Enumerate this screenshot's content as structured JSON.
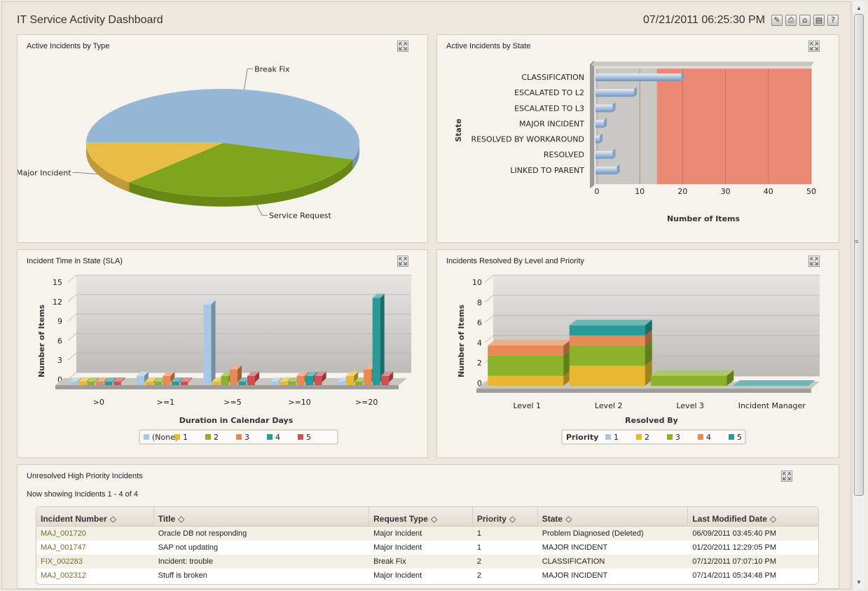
{
  "header": {
    "title": "IT Service Activity Dashboard",
    "datetime": "07/21/2011 06:25:30 PM",
    "tools": [
      "edit-icon",
      "print-icon",
      "home-icon",
      "clipboard-icon",
      "help-icon"
    ],
    "tool_glyphs": [
      "✎",
      "⎙",
      "⌂",
      "▤",
      "?"
    ]
  },
  "panels": {
    "type_title": "Active Incidents by Type",
    "state_title": "Active Incidents by State",
    "sla_title": "Incident Time in State (SLA)",
    "level_title": "Incidents Resolved By Level and Priority",
    "unresolved_title": "Unresolved High Priority Incidents"
  },
  "chart_data": [
    {
      "type": "pie",
      "title": "Active Incidents by Type",
      "labels": [
        "Break Fix",
        "Service Request",
        "Major Incident"
      ],
      "values": [
        55,
        32,
        13
      ],
      "colors": [
        "#95b7d6",
        "#7fa51c",
        "#e9bc45"
      ]
    },
    {
      "type": "bar",
      "orientation": "horizontal",
      "title": "Active Incidents by State",
      "categories": [
        "CLASSIFICATION",
        "ESCALATED TO L2",
        "ESCALATED TO L3",
        "MAJOR INCIDENT",
        "RESOLVED BY WORKAROUND",
        "RESOLVED",
        "LINKED TO PARENT"
      ],
      "values": [
        20,
        9,
        4,
        2,
        1,
        4,
        5
      ],
      "xlabel": "Number of Items",
      "ylabel": "State",
      "xlim": [
        0,
        50
      ],
      "xticks": [
        0,
        10,
        20,
        30,
        40,
        50
      ],
      "bands": [
        {
          "from": 0,
          "to": 14,
          "color": "#c9c8c4"
        },
        {
          "from": 14,
          "to": 50,
          "color": "#ea8a74"
        }
      ]
    },
    {
      "type": "bar",
      "title": "Incident Time in State (SLA)",
      "categories": [
        ">0",
        ">=1",
        ">=5",
        ">=10",
        ">=20"
      ],
      "series": [
        {
          "name": "(None)",
          "color": "#a9c8e6",
          "values": [
            0,
            1,
            12,
            0,
            0
          ]
        },
        {
          "name": "1",
          "color": "#e8b92e",
          "values": [
            0,
            0,
            0,
            0,
            1
          ]
        },
        {
          "name": "2",
          "color": "#8cb22a",
          "values": [
            0,
            0,
            1,
            0,
            0
          ]
        },
        {
          "name": "3",
          "color": "#e88a55",
          "values": [
            0,
            1,
            2,
            1,
            2
          ]
        },
        {
          "name": "4",
          "color": "#2a9a98",
          "values": [
            0,
            0,
            0,
            1,
            13
          ]
        },
        {
          "name": "5",
          "color": "#d34f55",
          "values": [
            0,
            0,
            1,
            1,
            1
          ]
        }
      ],
      "xlabel": "Duration in Calendar Days",
      "ylabel": "Number of Items",
      "ylim": [
        0,
        15
      ],
      "yticks": [
        0,
        3,
        6,
        9,
        12,
        15
      ]
    },
    {
      "type": "bar",
      "stacked": true,
      "title": "Incidents Resolved By Level and Priority",
      "categories": [
        "Level 1",
        "Level 2",
        "Level 3",
        "Incident Manager"
      ],
      "series": [
        {
          "name": "1",
          "color": "#a9c8e6",
          "values": [
            0,
            0,
            0,
            0
          ]
        },
        {
          "name": "2",
          "color": "#e8b92e",
          "values": [
            1,
            2,
            0,
            0
          ]
        },
        {
          "name": "3",
          "color": "#8cb22a",
          "values": [
            2,
            2,
            1,
            0
          ]
        },
        {
          "name": "4",
          "color": "#e88a55",
          "values": [
            1,
            1,
            0,
            0
          ]
        },
        {
          "name": "5",
          "color": "#2a9a98",
          "values": [
            0,
            1,
            0,
            0
          ]
        }
      ],
      "legend_title": "Priority",
      "xlabel": "Resolved By",
      "ylabel": "Number of Items",
      "ylim": [
        0,
        10
      ],
      "yticks": [
        0,
        2,
        4,
        6,
        8,
        10
      ]
    }
  ],
  "table": {
    "showing": "Now showing Incidents 1 - 4 of 4",
    "headers": [
      "Incident Number",
      "Title",
      "Request Type",
      "Priority",
      "State",
      "Last Modified Date"
    ],
    "sort_glyph": "◇",
    "rows": [
      [
        "MAJ_001720",
        "Oracle DB not responding",
        "Major Incident",
        "1",
        "Problem Diagnosed (Deleted)",
        "06/09/2011 03:45:40 PM"
      ],
      [
        "MAJ_001747",
        "SAP not updating",
        "Major Incident",
        "1",
        "MAJOR INCIDENT",
        "01/20/2011 12:29:05 PM"
      ],
      [
        "FIX_002283",
        "Incident:  trouble",
        "Break Fix",
        "2",
        "CLASSIFICATION",
        "07/12/2011 07:07:10 PM"
      ],
      [
        "MAJ_002312",
        "Stuff is broken",
        "Major Incident",
        "2",
        "MAJOR INCIDENT",
        "07/14/2011 05:34:48 PM"
      ]
    ]
  }
}
